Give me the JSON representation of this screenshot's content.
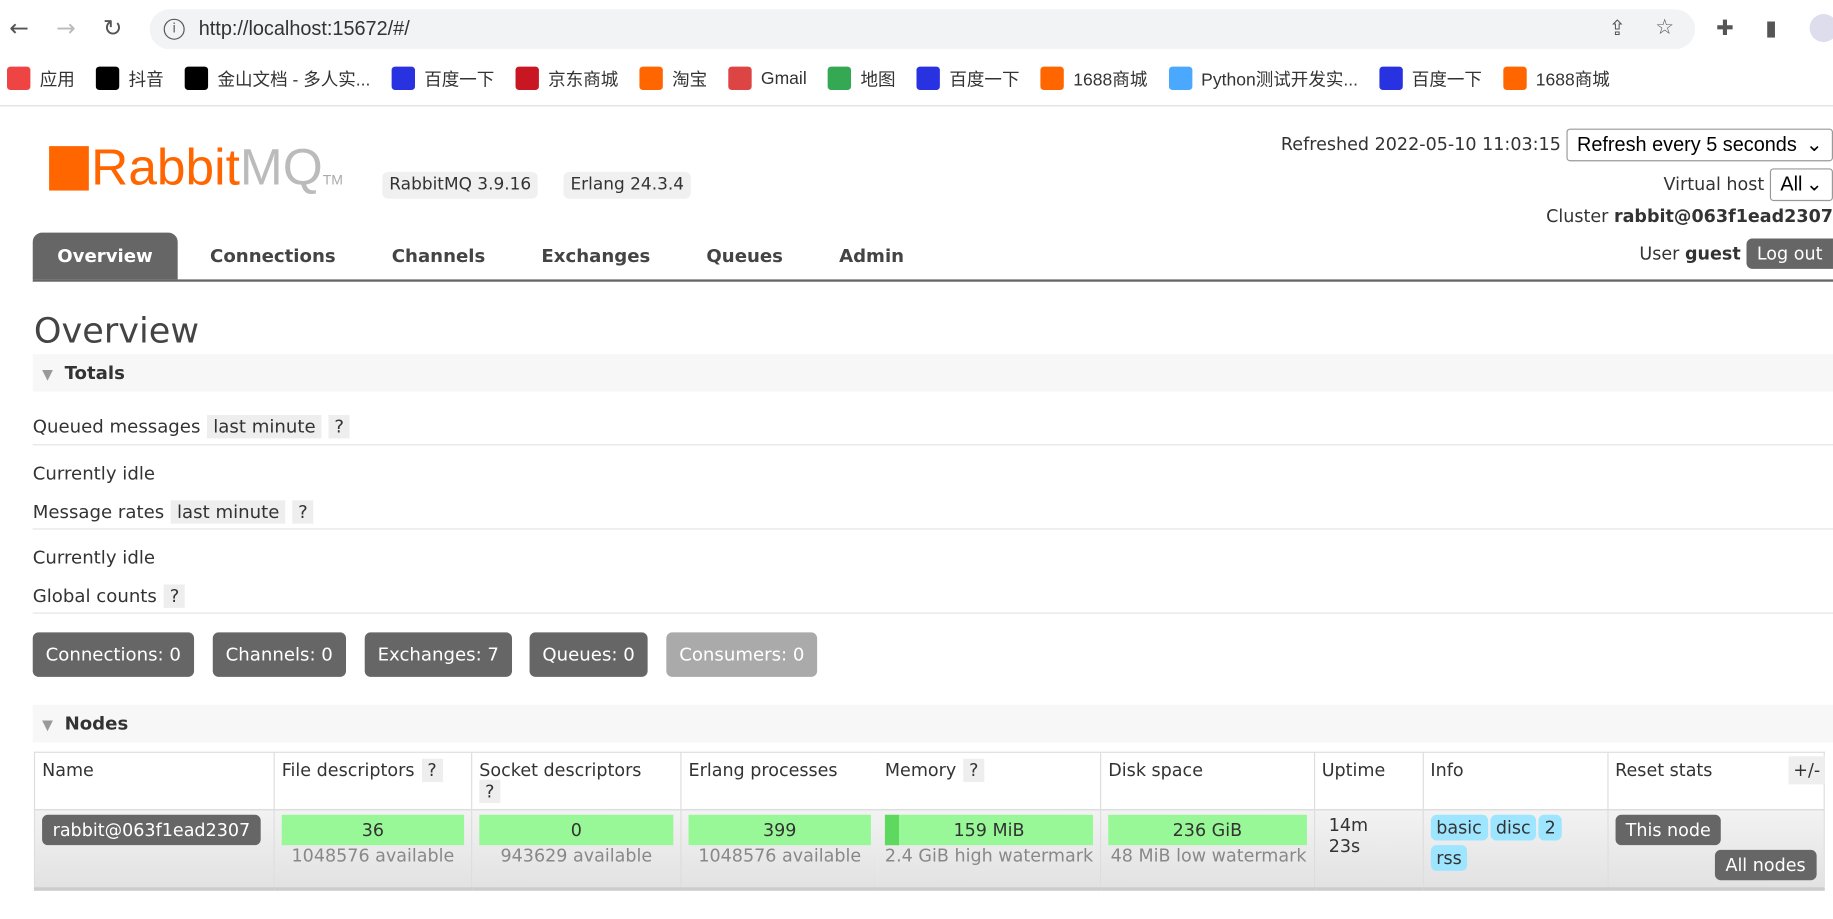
{
  "browser": {
    "url": "http://localhost:15672/#/",
    "bookmarks": [
      {
        "label": "应用",
        "icon": "apps-grid-icon",
        "color": "#e44"
      },
      {
        "label": "抖音",
        "icon": "douyin-icon",
        "color": "#000"
      },
      {
        "label": "金山文档 - 多人实...",
        "icon": "wps-icon",
        "color": "#000"
      },
      {
        "label": "百度一下",
        "icon": "baidu-icon",
        "color": "#2932e1"
      },
      {
        "label": "京东商城",
        "icon": "jd-icon",
        "color": "#c81623"
      },
      {
        "label": "淘宝",
        "icon": "taobao-icon",
        "color": "#f60"
      },
      {
        "label": "Gmail",
        "icon": "gmail-icon",
        "color": "#d44"
      },
      {
        "label": "地图",
        "icon": "maps-icon",
        "color": "#34a853"
      },
      {
        "label": "百度一下",
        "icon": "baidu-icon",
        "color": "#2932e1"
      },
      {
        "label": "1688商城",
        "icon": "alibaba-icon",
        "color": "#f60"
      },
      {
        "label": "Python测试开发实...",
        "icon": "diamond-icon",
        "color": "#4aa8ff"
      },
      {
        "label": "百度一下",
        "icon": "baidu-icon",
        "color": "#2932e1"
      },
      {
        "label": "1688商城",
        "icon": "alibaba-icon",
        "color": "#f60"
      }
    ]
  },
  "header": {
    "logo_rabbit": "Rabbit",
    "logo_mq": "MQ",
    "logo_tm": "TM",
    "rabbitmq_version": "RabbitMQ 3.9.16",
    "erlang_version": "Erlang 24.3.4",
    "refreshed": "Refreshed 2022-05-10 11:03:15",
    "refresh_select": "Refresh every 5 seconds",
    "vhost_label": "Virtual host",
    "vhost_select": "All",
    "cluster_label": "Cluster",
    "cluster_name": "rabbit@063f1ead2307",
    "user_label": "User",
    "user_name": "guest",
    "logout": "Log out"
  },
  "tabs": [
    "Overview",
    "Connections",
    "Channels",
    "Exchanges",
    "Queues",
    "Admin"
  ],
  "page_title": "Overview",
  "totals": {
    "title": "Totals",
    "queued_label": "Queued messages",
    "queued_range": "last minute",
    "help": "?",
    "idle1": "Currently idle",
    "rates_label": "Message rates",
    "rates_range": "last minute",
    "idle2": "Currently idle",
    "global_label": "Global counts",
    "counts": [
      "Connections: 0",
      "Channels: 0",
      "Exchanges: 7",
      "Queues: 0",
      "Consumers: 0"
    ]
  },
  "nodes": {
    "title": "Nodes",
    "plusminus": "+/-",
    "columns": [
      "Name",
      "File descriptors",
      "Socket descriptors",
      "Erlang processes",
      "Memory",
      "Disk space",
      "Uptime",
      "Info",
      "Reset stats"
    ],
    "row": {
      "name": "rabbit@063f1ead2307",
      "fd": "36",
      "fd_sub": "1048576 available",
      "sd": "0",
      "sd_sub": "943629 available",
      "ep": "399",
      "ep_sub": "1048576 available",
      "mem": "159 MiB",
      "mem_sub": "2.4 GiB high watermark",
      "mem_fraction": 0.065,
      "disk": "236 GiB",
      "disk_sub": "48 MiB low watermark",
      "uptime1": "14m",
      "uptime2": "23s",
      "info": [
        "basic",
        "disc",
        "2",
        "rss"
      ],
      "reset_this": "This node",
      "reset_all": "All nodes"
    }
  },
  "colors": {
    "brand": "#ff6600",
    "bar_ok": "#98f898",
    "tag": "#9ee6ff",
    "button": "#666666"
  }
}
